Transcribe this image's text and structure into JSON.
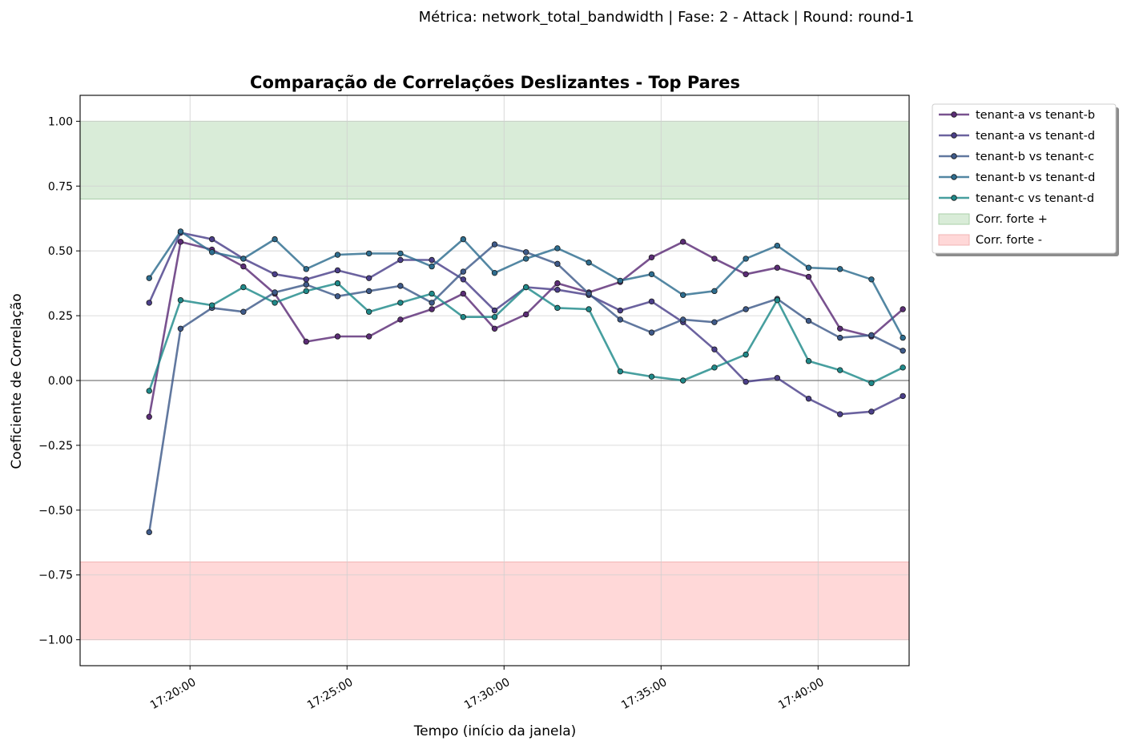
{
  "chart_data": {
    "type": "line",
    "suptitle": "Métrica: network_total_bandwidth | Fase: 2 - Attack | Round: round-1",
    "title": "Comparação de Correlações Deslizantes - Top Pares",
    "xlabel": "Tempo (início da janela)",
    "ylabel": "Coeficiente de Correlação",
    "ylim": [
      -1.1,
      1.1
    ],
    "xlim_minutes": [
      16.5,
      42.9
    ],
    "x_ticks": [
      "17:20:00",
      "17:25:00",
      "17:30:00",
      "17:35:00",
      "17:40:00"
    ],
    "x_tick_minutes": [
      20,
      25,
      30,
      35,
      40
    ],
    "y_ticks": [
      "1.00",
      "0.75",
      "0.50",
      "0.25",
      "0.00",
      "−0.25",
      "−0.50",
      "−0.75",
      "−1.00"
    ],
    "y_tick_values": [
      1.0,
      0.75,
      0.5,
      0.25,
      0.0,
      -0.25,
      -0.5,
      -0.75,
      -1.0
    ],
    "grid": true,
    "zero_line": true,
    "legend_position": "outside-top-right",
    "bands": [
      {
        "name": "Corr. forte +",
        "from": 0.7,
        "to": 1.0,
        "color": "#d9ecd8",
        "edge": "#aacfa8"
      },
      {
        "name": "Corr. forte -",
        "from": -1.0,
        "to": -0.7,
        "color": "#ffd8d8",
        "edge": "#f2b3b3"
      }
    ],
    "x": [
      "17:18:30",
      "17:19:30",
      "17:20:30",
      "17:21:30",
      "17:22:30",
      "17:23:30",
      "17:24:30",
      "17:25:30",
      "17:26:30",
      "17:27:30",
      "17:28:30",
      "17:29:30",
      "17:30:30",
      "17:31:30",
      "17:32:30",
      "17:33:30",
      "17:34:30",
      "17:35:30",
      "17:36:30",
      "17:37:30",
      "17:38:30",
      "17:39:30",
      "17:40:30",
      "17:41:30",
      "17:42:30"
    ],
    "x_minutes": [
      18.7,
      19.7,
      20.7,
      21.7,
      22.7,
      23.7,
      24.7,
      25.7,
      26.7,
      27.7,
      28.7,
      29.7,
      30.7,
      31.7,
      32.7,
      33.7,
      34.7,
      35.7,
      36.7,
      37.7,
      38.7,
      39.7,
      40.7,
      41.7,
      42.7
    ],
    "series": [
      {
        "name": "tenant-a vs tenant-b",
        "color": "#5b2c76",
        "values": [
          -0.14,
          0.535,
          0.505,
          0.44,
          0.335,
          0.15,
          0.17,
          0.17,
          0.235,
          0.275,
          0.335,
          0.2,
          0.255,
          0.375,
          0.34,
          0.38,
          0.475,
          0.535,
          0.47,
          0.41,
          0.435,
          0.4,
          0.2,
          0.17,
          0.275
        ]
      },
      {
        "name": "tenant-a vs tenant-d",
        "color": "#4b3f8a",
        "values": [
          0.3,
          0.57,
          0.545,
          0.47,
          0.41,
          0.39,
          0.425,
          0.395,
          0.465,
          0.465,
          0.39,
          0.27,
          0.36,
          0.35,
          0.33,
          0.27,
          0.305,
          0.225,
          0.12,
          -0.005,
          0.01,
          -0.07,
          -0.13,
          -0.12,
          -0.06
        ]
      },
      {
        "name": "tenant-b vs tenant-c",
        "color": "#3e5a8a",
        "values": [
          -0.585,
          0.2,
          0.28,
          0.265,
          0.34,
          0.37,
          0.325,
          0.345,
          0.365,
          0.3,
          0.42,
          0.525,
          0.495,
          0.45,
          0.335,
          0.235,
          0.185,
          0.235,
          0.225,
          0.275,
          0.315,
          0.23,
          0.165,
          0.175,
          0.115
        ]
      },
      {
        "name": "tenant-b vs tenant-d",
        "color": "#2d6d8f",
        "values": [
          0.395,
          0.575,
          0.495,
          0.47,
          0.545,
          0.43,
          0.485,
          0.49,
          0.49,
          0.44,
          0.545,
          0.415,
          0.47,
          0.51,
          0.455,
          0.385,
          0.41,
          0.33,
          0.345,
          0.47,
          0.52,
          0.435,
          0.43,
          0.39,
          0.165
        ]
      },
      {
        "name": "tenant-c vs tenant-d",
        "color": "#1f8a8a",
        "values": [
          -0.04,
          0.31,
          0.29,
          0.36,
          0.3,
          0.345,
          0.375,
          0.265,
          0.3,
          0.335,
          0.245,
          0.245,
          0.36,
          0.28,
          0.275,
          0.035,
          0.015,
          0.0,
          0.05,
          0.1,
          0.31,
          0.075,
          0.04,
          -0.01,
          0.05
        ]
      }
    ]
  }
}
